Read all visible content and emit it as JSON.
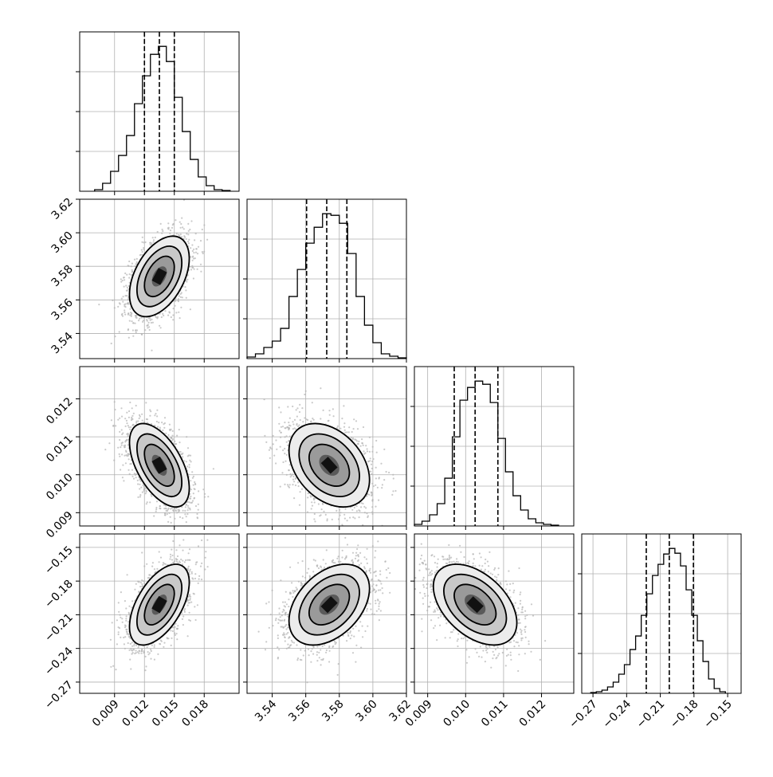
{
  "chart_data": {
    "type": "corner",
    "parameters": [
      {
        "range": [
          0.0055,
          0.0215
        ],
        "ticks": [
          0.009,
          0.012,
          0.015,
          0.018
        ],
        "tick_labels": [
          "0.009",
          "0.012",
          "0.015",
          "0.018"
        ],
        "quantiles": [
          0.012,
          0.0135,
          0.015
        ],
        "hist_bins": [
          0.007,
          0.0078,
          0.0086,
          0.0094,
          0.0102,
          0.011,
          0.0118,
          0.0126,
          0.0134,
          0.0142,
          0.015,
          0.0158,
          0.0166,
          0.0174,
          0.0182,
          0.019,
          0.0198,
          0.0206
        ],
        "hist_counts": [
          2,
          10,
          25,
          45,
          70,
          110,
          145,
          172,
          182,
          163,
          118,
          75,
          40,
          18,
          7,
          2,
          1
        ],
        "mean": 0.0135,
        "sd": 0.0015
      },
      {
        "range": [
          3.525,
          3.62
        ],
        "ticks": [
          3.54,
          3.56,
          3.58,
          3.6,
          3.62
        ],
        "tick_labels": [
          "3.54",
          "3.56",
          "3.58",
          "3.60",
          "3.62"
        ],
        "quantiles": [
          3.5605,
          3.5725,
          3.5845
        ],
        "hist_bins": [
          3.525,
          3.53,
          3.535,
          3.54,
          3.545,
          3.55,
          3.555,
          3.56,
          3.565,
          3.57,
          3.575,
          3.58,
          3.585,
          3.59,
          3.595,
          3.6,
          3.605,
          3.61,
          3.615,
          3.62
        ],
        "hist_counts": [
          2,
          6,
          14,
          22,
          38,
          78,
          112,
          145,
          165,
          182,
          180,
          170,
          132,
          78,
          42,
          20,
          6,
          3,
          1
        ],
        "mean": 3.574,
        "sd": 0.012
      },
      {
        "range": [
          0.00865,
          0.01285
        ],
        "ticks": [
          0.009,
          0.01,
          0.011,
          0.012
        ],
        "tick_labels": [
          "0.009",
          "0.010",
          "0.011",
          "0.012"
        ],
        "quantiles": [
          0.0097,
          0.01025,
          0.01085
        ],
        "hist_bins": [
          0.00865,
          0.00885,
          0.00905,
          0.00925,
          0.00945,
          0.00965,
          0.00985,
          0.01005,
          0.01025,
          0.01045,
          0.01065,
          0.01085,
          0.01105,
          0.01125,
          0.01145,
          0.01165,
          0.01185,
          0.01205,
          0.01225,
          0.01245
        ],
        "hist_counts": [
          2,
          6,
          14,
          28,
          60,
          112,
          158,
          174,
          182,
          178,
          155,
          110,
          68,
          38,
          20,
          9,
          4,
          2,
          1
        ],
        "mean": 0.01025,
        "sd": 0.00055
      },
      {
        "range": [
          -0.28,
          -0.138
        ],
        "ticks": [
          -0.27,
          -0.24,
          -0.21,
          -0.18,
          -0.15
        ],
        "tick_labels": [
          "−0.27",
          "−0.24",
          "−0.21",
          "−0.18",
          "−0.15"
        ],
        "quantiles": [
          -0.2225,
          -0.202,
          -0.1805
        ],
        "hist_bins": [
          -0.272,
          -0.267,
          -0.262,
          -0.257,
          -0.252,
          -0.247,
          -0.242,
          -0.237,
          -0.232,
          -0.227,
          -0.222,
          -0.217,
          -0.212,
          -0.207,
          -0.202,
          -0.197,
          -0.192,
          -0.187,
          -0.182,
          -0.177,
          -0.172,
          -0.167,
          -0.162,
          -0.157,
          -0.152
        ],
        "hist_counts": [
          1,
          2,
          4,
          8,
          14,
          24,
          36,
          55,
          72,
          98,
          125,
          148,
          162,
          175,
          182,
          176,
          160,
          130,
          98,
          66,
          40,
          18,
          6,
          2
        ],
        "mean": -0.201,
        "sd": 0.018
      }
    ],
    "correlations": [
      [
        1,
        0.45,
        -0.55,
        0.55
      ],
      [
        0.45,
        1,
        -0.35,
        0.4
      ],
      [
        -0.55,
        -0.35,
        1,
        -0.45
      ],
      [
        0.55,
        0.4,
        -0.45,
        1
      ]
    ],
    "contour_levels_sigma": [
      0.5,
      1.0,
      1.5,
      2.0
    ],
    "colors": {
      "line": "#000000",
      "grid": "#b0b0b0",
      "scatter": "#b4b4b4"
    },
    "grid": true
  }
}
